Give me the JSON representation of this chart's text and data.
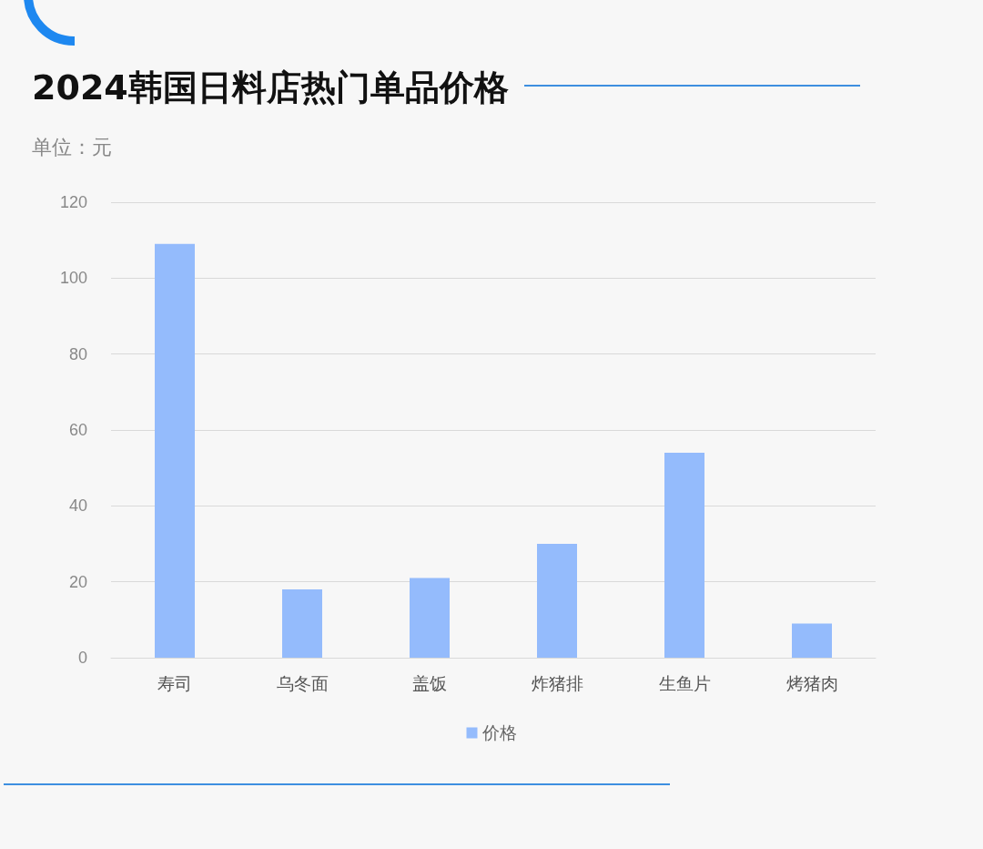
{
  "chart_data": {
    "type": "bar",
    "title": "2024韩国日料店热门单品价格",
    "subtitle": "单位：元",
    "categories": [
      "寿司",
      "乌冬面",
      "盖饭",
      "炸猪排",
      "生鱼片",
      "烤猪肉"
    ],
    "series": [
      {
        "name": "价格",
        "color": "#94bbfc",
        "values": [
          109,
          18,
          21,
          30,
          54,
          9
        ]
      }
    ],
    "ylim": [
      0,
      120
    ],
    "yticks": [
      0,
      20,
      40,
      60,
      80,
      100,
      120
    ],
    "grid": "y",
    "legend": "bottom"
  }
}
